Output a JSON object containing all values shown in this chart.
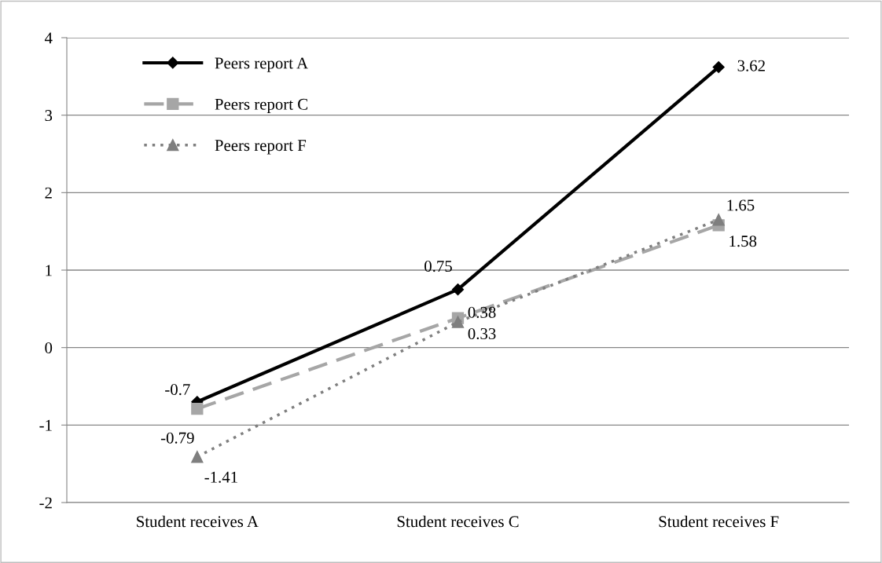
{
  "chart_data": {
    "type": "line",
    "categories": [
      "Student receives A",
      "Student receives C",
      "Student receives F"
    ],
    "series": [
      {
        "name": "Peers report A",
        "color": "#000000",
        "values": [
          -0.7,
          0.75,
          3.62
        ],
        "marker": "diamond",
        "line_style": "solid"
      },
      {
        "name": "Peers report C",
        "color": "#a6a6a6",
        "values": [
          -0.79,
          0.38,
          1.58
        ],
        "marker": "square",
        "line_style": "dashed"
      },
      {
        "name": "Peers report F",
        "color": "#7f7f7f",
        "values": [
          -1.41,
          0.33,
          1.65
        ],
        "marker": "triangle",
        "line_style": "dotted"
      }
    ],
    "ylim": [
      -2,
      4
    ],
    "yticks": [
      -2,
      -1,
      0,
      1,
      2,
      3,
      4
    ],
    "grid": "y",
    "legend": "top left",
    "data_labels": true
  }
}
